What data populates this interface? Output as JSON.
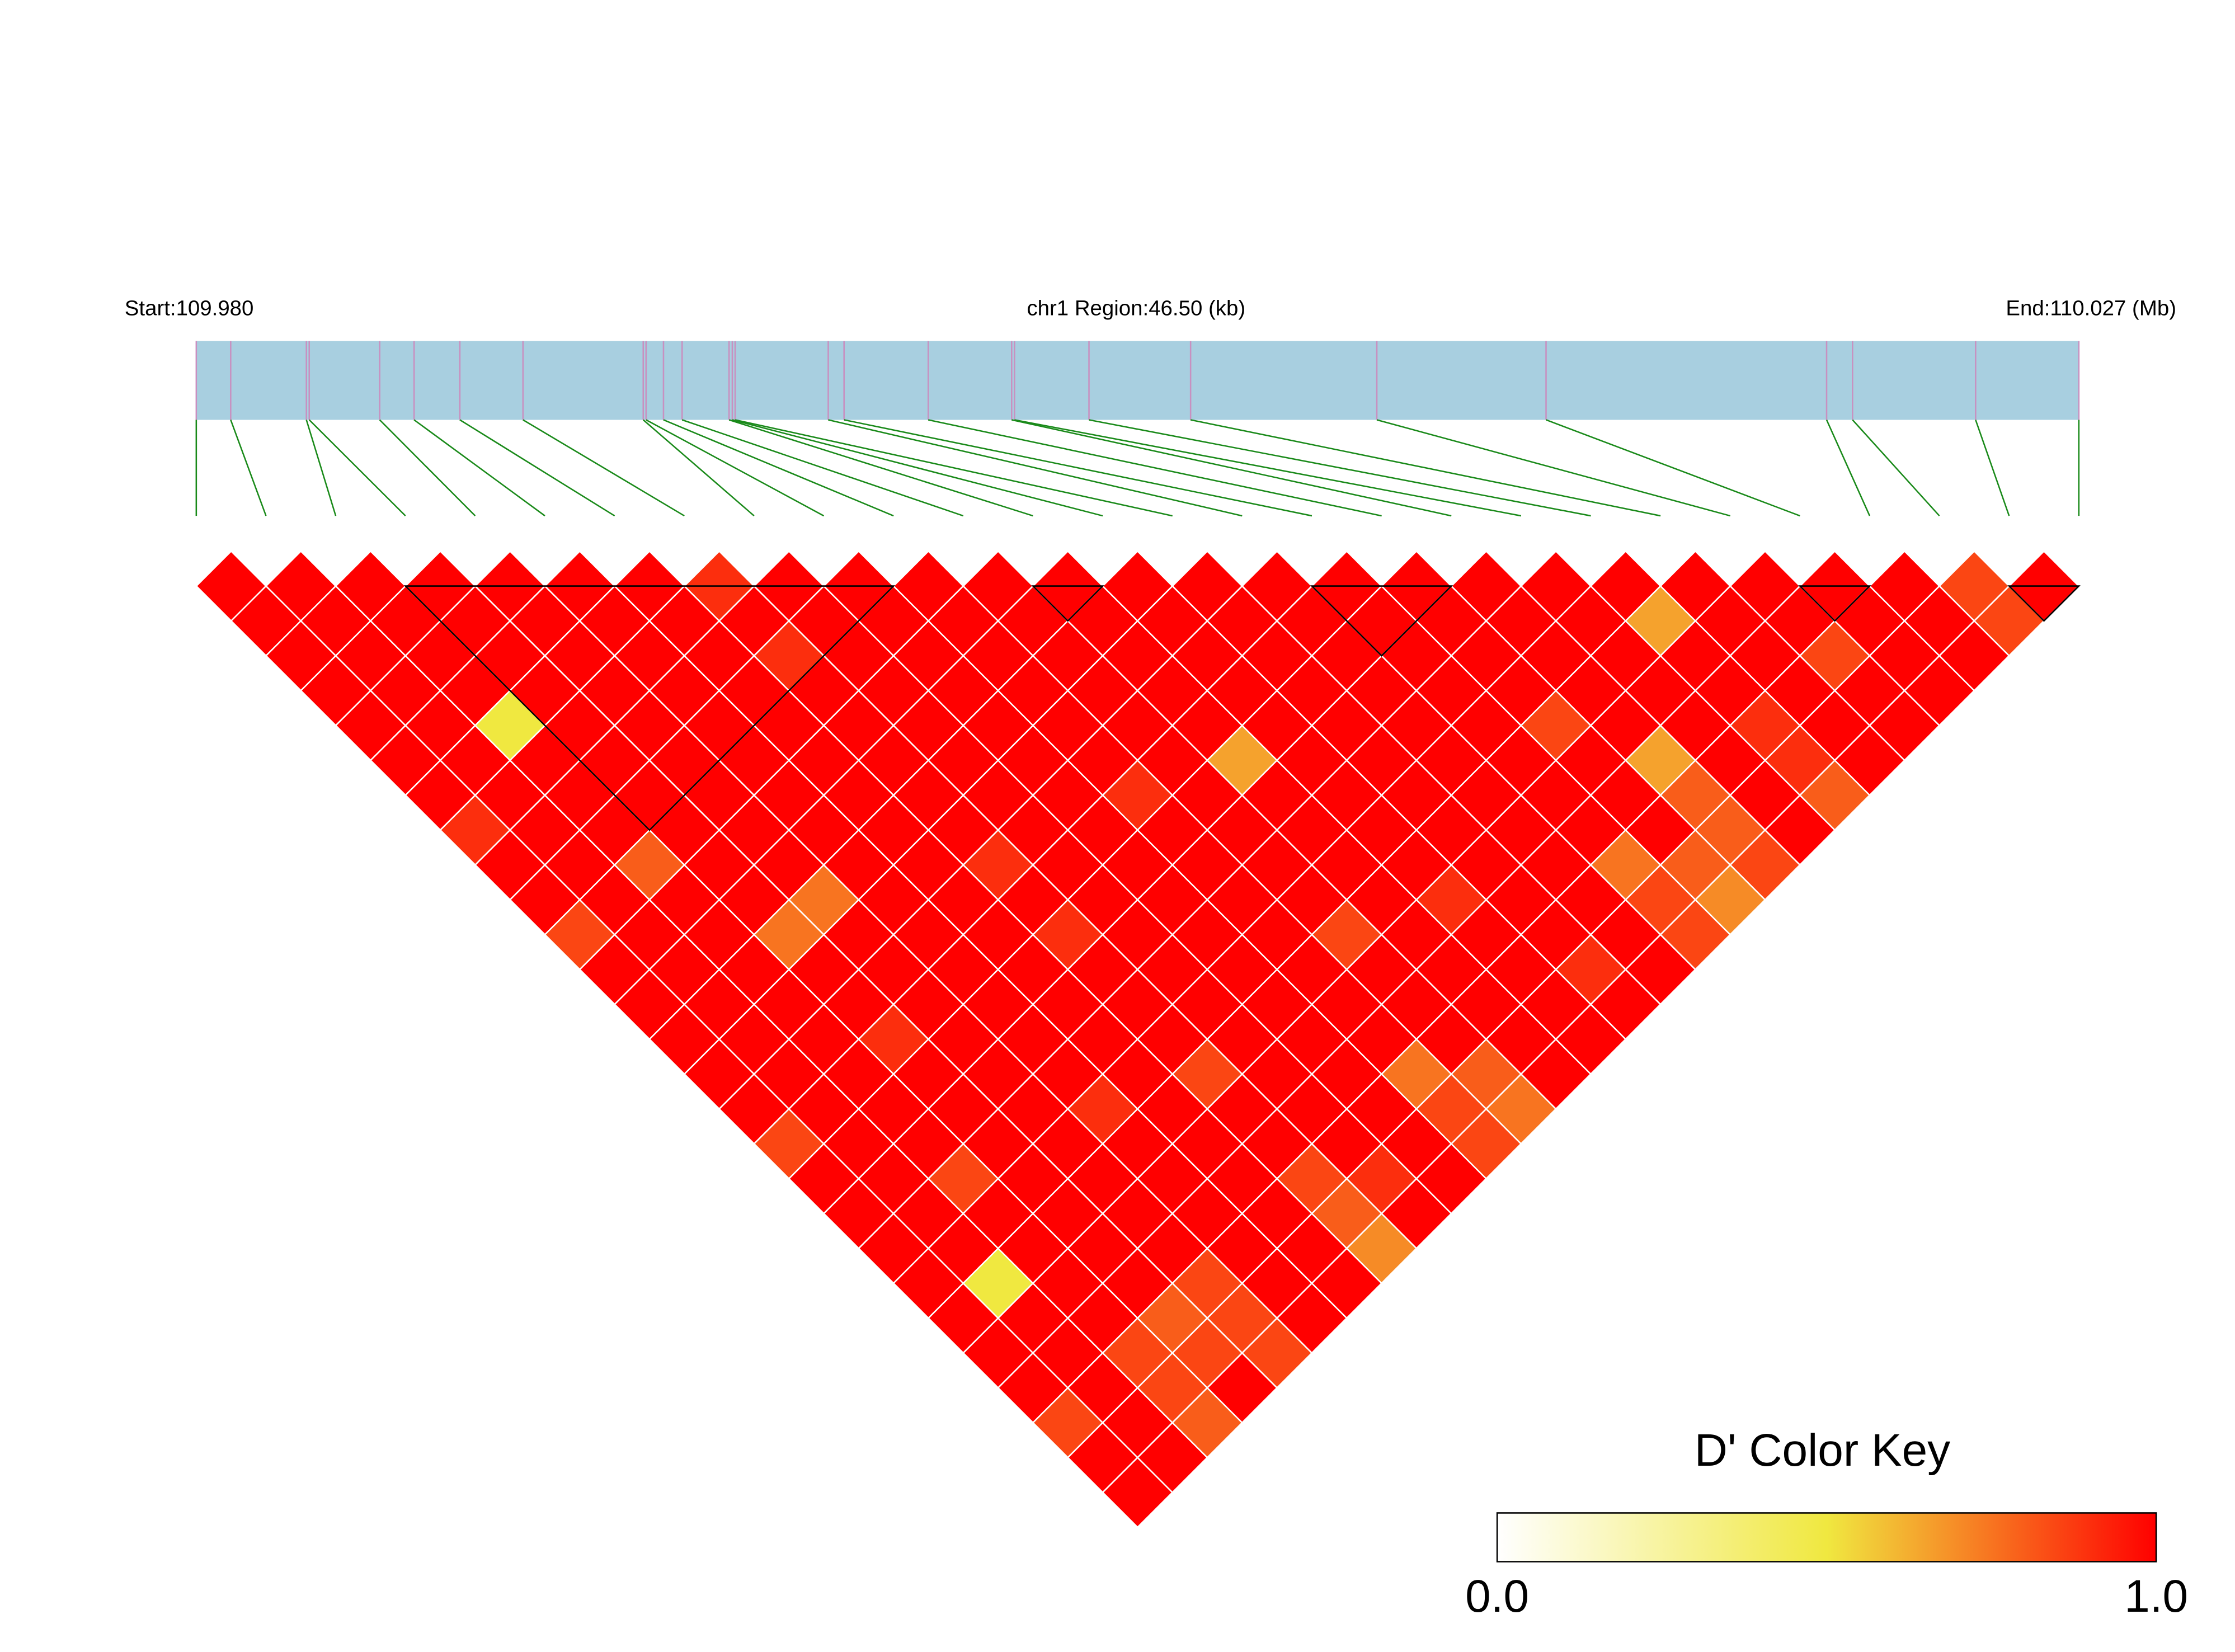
{
  "chart_data": {
    "type": "ld_heatmap",
    "start_label": "Start:109.980",
    "region_label": "chr1 Region:46.50 (kb)",
    "end_label": "End:110.027 (Mb)",
    "key_title": "D' Color Key",
    "xlim": [
      0,
      46.5
    ],
    "snp_positions_kb": [
      0,
      0.85,
      2.72,
      2.79,
      4.53,
      5.38,
      6.51,
      8.07,
      11.04,
      11.11,
      11.54,
      12.0,
      13.16,
      13.24,
      13.31,
      15.61,
      16.0,
      18.08,
      20.14,
      20.21,
      22.05,
      24.56,
      29.16,
      33.34,
      40.27,
      40.91,
      43.95,
      46.5
    ],
    "dprime": [
      [
        1,
        1,
        1,
        1,
        1,
        1,
        1,
        0.9,
        1,
        1,
        0.85,
        1,
        1,
        1,
        1,
        1,
        0.85,
        1,
        1,
        1,
        1,
        1,
        1,
        1,
        0.85,
        1,
        1
      ],
      [
        1,
        1,
        1,
        1,
        1,
        1,
        1,
        1,
        1,
        1,
        1,
        1,
        1,
        1,
        1,
        1,
        1,
        1,
        1,
        1,
        0.5,
        1,
        1,
        1,
        1,
        1
      ],
      [
        1,
        1,
        1,
        1,
        0.5,
        1,
        1,
        1,
        0.8,
        1,
        1,
        1,
        1,
        1,
        1,
        1,
        1,
        0.85,
        1,
        1,
        1,
        1,
        0.85,
        0.85,
        0.8
      ],
      [
        1,
        1,
        1,
        1,
        1,
        1,
        1,
        1,
        1,
        1,
        0.75,
        1,
        1,
        0.9,
        1,
        1,
        1,
        1,
        1,
        1,
        1,
        0.8,
        0.85,
        1
      ],
      [
        1,
        1,
        1,
        1,
        1,
        1,
        1,
        1,
        1,
        0.75,
        1,
        1,
        1,
        1,
        1,
        1,
        1,
        1,
        1,
        1,
        0.85,
        0.85,
        0.85
      ],
      [
        1,
        1,
        1,
        1,
        1,
        1,
        1,
        1,
        1,
        1,
        1,
        1,
        1,
        1,
        1,
        0.9,
        1,
        1,
        1,
        1,
        1,
        1
      ],
      [
        1,
        1,
        1,
        1,
        1,
        1,
        1,
        1,
        1,
        1,
        1,
        1,
        1,
        1,
        1,
        1,
        1,
        1,
        1,
        1,
        1
      ],
      [
        0.9,
        1,
        0.9,
        1,
        1,
        1,
        1,
        1,
        0.9,
        1,
        0.9,
        1,
        1,
        1,
        0.85,
        1,
        1,
        0.85,
        0.8,
        0.7
      ],
      [
        1,
        1,
        1,
        1,
        1,
        1,
        1,
        1,
        1,
        1,
        1,
        1,
        1,
        1,
        1,
        1,
        1,
        0.9,
        1
      ],
      [
        1,
        1,
        1,
        1,
        1,
        1,
        1,
        1,
        1,
        1,
        1,
        1,
        1,
        1,
        1,
        1,
        1,
        1
      ],
      [
        1,
        1,
        1,
        1,
        1,
        1,
        0.9,
        1,
        1,
        1,
        1,
        1,
        1,
        1,
        0.75,
        0.85,
        0.85
      ],
      [
        1,
        1,
        1,
        1,
        1,
        1,
        1,
        1,
        1,
        1,
        0.85,
        1,
        1,
        1,
        0.8,
        0.75
      ],
      [
        1,
        1,
        1,
        1,
        1,
        0.65,
        1,
        1,
        1,
        1,
        1,
        1,
        1,
        1,
        1
      ],
      [
        1,
        1,
        1,
        1,
        1,
        1,
        1,
        1,
        1,
        0.9,
        1,
        1,
        1,
        1
      ],
      [
        1,
        1,
        1,
        1,
        1,
        1,
        1,
        1,
        1,
        1,
        1,
        0.9,
        1
      ],
      [
        1,
        1,
        1,
        1,
        1,
        1,
        1,
        1,
        1,
        1,
        1,
        1
      ],
      [
        1,
        1,
        1,
        1,
        1,
        1,
        1,
        1,
        0.75,
        0.85,
        0.85
      ],
      [
        1,
        1,
        1,
        1,
        0.85,
        1,
        1,
        1,
        0.8,
        0.7
      ],
      [
        1,
        1,
        1,
        1,
        1,
        0.65,
        0.8,
        0.8,
        0.85
      ],
      [
        1,
        1,
        1,
        1,
        1,
        1,
        1,
        1
      ],
      [
        1,
        0.65,
        1,
        1,
        0.9,
        0.9,
        0.8
      ],
      [
        1,
        1,
        1,
        1,
        1,
        1
      ],
      [
        1,
        1,
        0.85,
        1,
        1
      ],
      [
        1,
        1,
        1,
        1
      ],
      [
        1,
        1,
        1
      ],
      [
        0.85,
        0.85
      ],
      [
        1
      ]
    ],
    "blocks": [
      [
        3,
        10
      ],
      [
        12,
        13
      ],
      [
        16,
        18
      ],
      [
        23,
        24
      ],
      [
        26,
        27
      ]
    ],
    "key_lim": [
      0,
      1
    ],
    "key_ticks": [
      {
        "value": 0,
        "label": "0.0"
      },
      {
        "value": 1,
        "label": "1.0"
      }
    ],
    "colormap": [
      "#ffffff",
      "#f0e840",
      "#ff0000"
    ],
    "track_color": "#a8cfe0",
    "snp_line_color": "#c890c0",
    "connector_color": "#1a8a1a"
  }
}
